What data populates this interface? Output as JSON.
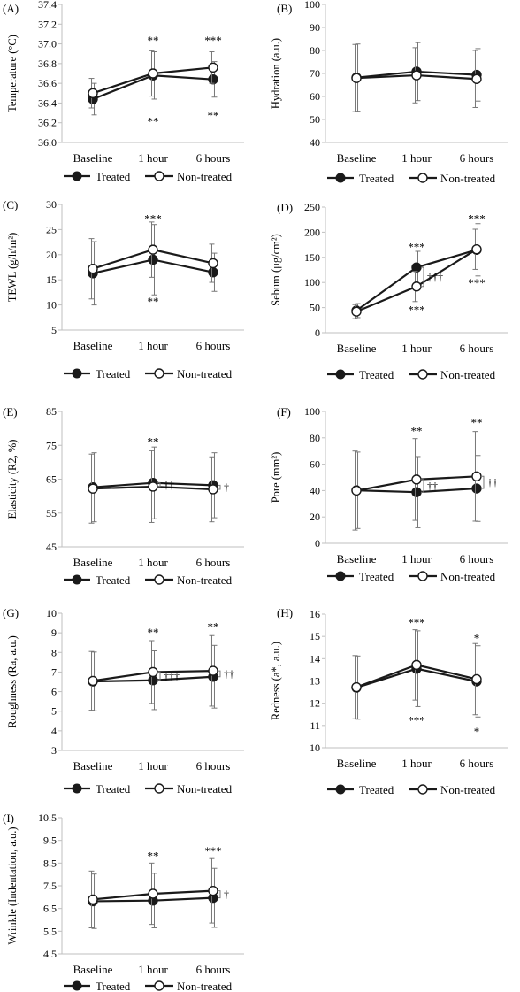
{
  "legend": {
    "treated": "Treated",
    "non_treated": "Non-treated"
  },
  "colors": {
    "line": "#1a1a1a",
    "errorbar": "#777777",
    "axis": "#bfbfbf",
    "text": "#000000"
  },
  "chart_data": [
    {
      "panel": "(A)",
      "type": "line",
      "ylabel": "Temperature (°C)",
      "ylim": [
        36.0,
        37.4
      ],
      "yticks": [
        "36.0",
        "36.2",
        "36.4",
        "36.6",
        "36.8",
        "37.0",
        "37.2",
        "37.4"
      ],
      "categories": [
        "Baseline",
        "1 hour",
        "6 hours"
      ],
      "series": [
        {
          "name": "Treated",
          "values": [
            36.44,
            36.68,
            36.64
          ],
          "sd": [
            0.16,
            0.24,
            0.18
          ]
        },
        {
          "name": "Non-treated",
          "values": [
            36.5,
            36.7,
            36.76
          ],
          "sd": [
            0.15,
            0.23,
            0.16
          ]
        }
      ],
      "annotations": [
        {
          "text": "**",
          "cat": 1,
          "y": 37.04
        },
        {
          "text": "***",
          "cat": 2,
          "y": 37.04
        },
        {
          "text": "**",
          "cat": 1,
          "y": 36.22
        },
        {
          "text": "**",
          "cat": 2,
          "y": 36.28
        }
      ]
    },
    {
      "panel": "(B)",
      "type": "line",
      "ylabel": "Hydration (a.u.)",
      "ylim": [
        40,
        100
      ],
      "yticks": [
        "40",
        "50",
        "60",
        "70",
        "80",
        "90",
        "100"
      ],
      "categories": [
        "Baseline",
        "1 hour",
        "6 hours"
      ],
      "series": [
        {
          "name": "Treated",
          "values": [
            68.2,
            70.8,
            69.4
          ],
          "sd": [
            14.6,
            12.6,
            11.4
          ]
        },
        {
          "name": "Non-treated",
          "values": [
            68.0,
            69.2,
            67.6
          ],
          "sd": [
            14.6,
            12.0,
            12.4
          ]
        }
      ],
      "annotations": []
    },
    {
      "panel": "(C)",
      "type": "line",
      "ylabel": "TEWL (g/h/m²)",
      "ylim": [
        5,
        30
      ],
      "yticks": [
        "5",
        "10",
        "15",
        "20",
        "25",
        "30"
      ],
      "categories": [
        "Baseline",
        "1 hour",
        "6 hours"
      ],
      "series": [
        {
          "name": "Treated",
          "values": [
            16.3,
            19.0,
            16.5
          ],
          "sd": [
            6.3,
            7.0,
            3.8
          ]
        },
        {
          "name": "Non-treated",
          "values": [
            17.2,
            21.0,
            18.3
          ],
          "sd": [
            6.0,
            5.5,
            3.8
          ]
        }
      ],
      "annotations": [
        {
          "text": "***",
          "cat": 1,
          "y": 27.3
        },
        {
          "text": "**",
          "cat": 1,
          "y": 10.8
        }
      ]
    },
    {
      "panel": "(D)",
      "type": "line",
      "ylabel": "Sebum (μg/cm²)",
      "ylim": [
        0,
        250
      ],
      "yticks": [
        "0",
        "50",
        "100",
        "150",
        "200",
        "250"
      ],
      "categories": [
        "Baseline",
        "1 hour",
        "6 hours"
      ],
      "series": [
        {
          "name": "Treated",
          "values": [
            44,
            130,
            165
          ],
          "sd": [
            14,
            32,
            52
          ]
        },
        {
          "name": "Non-treated",
          "values": [
            42,
            92,
            166
          ],
          "sd": [
            14,
            30,
            40
          ]
        }
      ],
      "annotations": [
        {
          "text": "***",
          "cat": 1,
          "y": 172
        },
        {
          "text": "***",
          "cat": 2,
          "y": 228
        },
        {
          "text": "***",
          "cat": 1,
          "y": 47
        },
        {
          "text": "***",
          "cat": 2,
          "y": 100
        },
        {
          "text": "†††",
          "cat": 1,
          "y": 104,
          "dx": 30,
          "bracket": [
            92,
            130
          ]
        }
      ]
    },
    {
      "panel": "(E)",
      "type": "line",
      "ylabel": "Elasticity (R2, %)",
      "ylim": [
        45,
        85
      ],
      "yticks": [
        "45",
        "55",
        "65",
        "75",
        "85"
      ],
      "categories": [
        "Baseline",
        "1 hour",
        "6 hours"
      ],
      "series": [
        {
          "name": "Treated",
          "values": [
            62.6,
            63.9,
            63.2
          ],
          "sd": [
            10.2,
            10.6,
            9.6
          ]
        },
        {
          "name": "Non-treated",
          "values": [
            62.2,
            62.8,
            62.0
          ],
          "sd": [
            10.2,
            10.6,
            9.6
          ]
        }
      ],
      "annotations": [
        {
          "text": "**",
          "cat": 1,
          "y": 76.2
        },
        {
          "text": "††",
          "cat": 1,
          "y": 67.0,
          "dx": 16,
          "bracket": [
            62.8,
            63.9
          ]
        },
        {
          "text": "†",
          "cat": 2,
          "y": 62.2,
          "dx": 16,
          "bracket": [
            62.0,
            63.2
          ]
        }
      ]
    },
    {
      "panel": "(F)",
      "type": "line",
      "ylabel": "Pore (mm²)",
      "ylim": [
        0,
        100
      ],
      "yticks": [
        "0",
        "20",
        "40",
        "60",
        "80",
        "100"
      ],
      "categories": [
        "Baseline",
        "1 hour",
        "6 hours"
      ],
      "series": [
        {
          "name": "Treated",
          "values": [
            40.2,
            38.8,
            41.6
          ],
          "sd": [
            29.0,
            27.0,
            25.0
          ]
        },
        {
          "name": "Non-treated",
          "values": [
            40.0,
            48.4,
            50.8
          ],
          "sd": [
            30.0,
            31.0,
            34.0
          ]
        }
      ],
      "annotations": [
        {
          "text": "**",
          "cat": 1,
          "y": 85.6
        },
        {
          "text": "**",
          "cat": 2,
          "y": 92.0
        },
        {
          "text": "††",
          "cat": 1,
          "y": 48.0,
          "dx": 16,
          "bracket": [
            38.8,
            48.4
          ]
        },
        {
          "text": "††",
          "cat": 2,
          "y": 44.0,
          "dx": 16,
          "bracket": [
            41.6,
            50.8
          ]
        }
      ]
    },
    {
      "panel": "(G)",
      "type": "line",
      "ylabel": "Roughness (Ra, a.u.)",
      "ylim": [
        3,
        10
      ],
      "yticks": [
        "3",
        "4",
        "5",
        "6",
        "7",
        "8",
        "9",
        "10"
      ],
      "categories": [
        "Baseline",
        "1 hour",
        "6 hours"
      ],
      "series": [
        {
          "name": "Treated",
          "values": [
            6.52,
            6.58,
            6.76
          ],
          "sd": [
            1.5,
            1.5,
            1.6
          ]
        },
        {
          "name": "Non-treated",
          "values": [
            6.55,
            7.0,
            7.06
          ],
          "sd": [
            1.5,
            1.6,
            1.8
          ]
        }
      ],
      "annotations": [
        {
          "text": "**",
          "cat": 1,
          "y": 9.05
        },
        {
          "text": "**",
          "cat": 2,
          "y": 9.35
        },
        {
          "text": "†††",
          "cat": 1,
          "y": 7.2,
          "dx": 18,
          "bracket": [
            6.58,
            7.0
          ]
        },
        {
          "text": "††",
          "cat": 2,
          "y": 6.7,
          "dx": 16,
          "bracket": [
            6.76,
            7.06
          ]
        }
      ]
    },
    {
      "panel": "(H)",
      "type": "line",
      "ylabel": "Redness (a*, a.u.)",
      "ylim": [
        10,
        16
      ],
      "yticks": [
        "10",
        "11",
        "12",
        "13",
        "14",
        "15",
        "16"
      ],
      "categories": [
        "Baseline",
        "1 hour",
        "6 hours"
      ],
      "series": [
        {
          "name": "Treated",
          "values": [
            12.7,
            13.55,
            12.98
          ],
          "sd": [
            1.42,
            1.7,
            1.6
          ]
        },
        {
          "name": "Non-treated",
          "values": [
            12.72,
            13.72,
            13.08
          ],
          "sd": [
            1.42,
            1.58,
            1.6
          ]
        }
      ],
      "annotations": [
        {
          "text": "***",
          "cat": 1,
          "y": 15.65
        },
        {
          "text": "*",
          "cat": 2,
          "y": 14.95
        },
        {
          "text": "***",
          "cat": 1,
          "y": 11.25
        },
        {
          "text": "*",
          "cat": 2,
          "y": 10.75
        }
      ]
    },
    {
      "panel": "(I)",
      "type": "line",
      "ylabel": "Wrinkle (Indentation, a.u.)",
      "ylim": [
        4.5,
        10.5
      ],
      "yticks": [
        "4.5",
        "5.5",
        "6.5",
        "7.5",
        "8.5",
        "9.5",
        "10.5"
      ],
      "categories": [
        "Baseline",
        "1 hour",
        "6 hours"
      ],
      "series": [
        {
          "name": "Treated",
          "values": [
            6.82,
            6.85,
            6.97
          ],
          "sd": [
            1.2,
            1.2,
            1.3
          ]
        },
        {
          "name": "Non-treated",
          "values": [
            6.9,
            7.15,
            7.28
          ],
          "sd": [
            1.25,
            1.35,
            1.42
          ]
        }
      ],
      "annotations": [
        {
          "text": "**",
          "cat": 1,
          "y": 8.85
        },
        {
          "text": "***",
          "cat": 2,
          "y": 9.05
        },
        {
          "text": "†",
          "cat": 2,
          "y": 7.1,
          "dx": 16,
          "bracket": [
            6.97,
            7.28
          ]
        }
      ]
    }
  ]
}
